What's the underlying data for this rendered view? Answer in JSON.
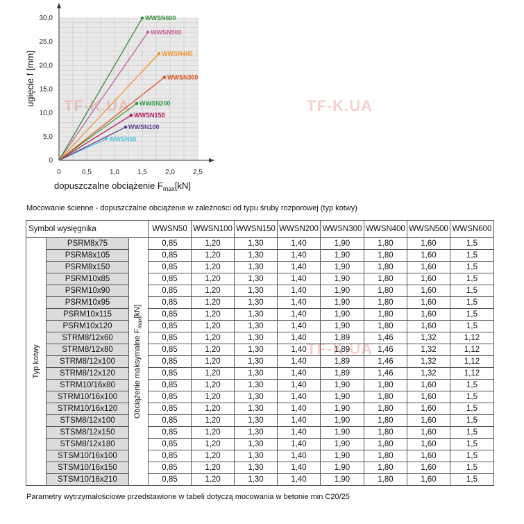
{
  "chart_data": {
    "type": "line",
    "xlabel": "dopuszczalne obciążenie F",
    "xlabel_sub": "max",
    "xlabel_unit": "[kN]",
    "ylabel": "ugięcie f [mm]",
    "xlim": [
      0,
      2.5
    ],
    "ylim": [
      0,
      30
    ],
    "x_ticks": [
      "0",
      "0,5",
      "1,0",
      "1,5",
      "2,0",
      "2,5"
    ],
    "y_ticks": [
      "0",
      "5,0",
      "10,0",
      "15,0",
      "20,0",
      "25,0",
      "30,0"
    ],
    "grid": true,
    "series": [
      {
        "name": "WWSN50",
        "color": "#4fc3d9",
        "x": [
          0,
          0.85
        ],
        "y": [
          0,
          4.5
        ]
      },
      {
        "name": "WWSN100",
        "color": "#5a3e8c",
        "x": [
          0,
          1.2
        ],
        "y": [
          0,
          7.0
        ]
      },
      {
        "name": "WWSN150",
        "color": "#b0185a",
        "x": [
          0,
          1.3
        ],
        "y": [
          0,
          9.5
        ]
      },
      {
        "name": "WWSN200",
        "color": "#2e9a3c",
        "x": [
          0,
          1.4
        ],
        "y": [
          0,
          12.0
        ]
      },
      {
        "name": "WWSN300",
        "color": "#d9531e",
        "x": [
          0,
          1.9
        ],
        "y": [
          0,
          17.5
        ]
      },
      {
        "name": "WWSN400",
        "color": "#f0922a",
        "x": [
          0,
          1.8
        ],
        "y": [
          0,
          22.5
        ]
      },
      {
        "name": "WWSN500",
        "color": "#c2609a",
        "x": [
          0,
          1.6
        ],
        "y": [
          0,
          27.0
        ]
      },
      {
        "name": "WWSN600",
        "color": "#3a8a3a",
        "x": [
          0,
          1.5
        ],
        "y": [
          0,
          30.0
        ]
      }
    ]
  },
  "watermarks": [
    "TF-K.UA",
    "TF-K.UA",
    "TF-K.UA",
    "TF-K.UA",
    "TF-K.UA"
  ],
  "caption": "Mocowanie ścienne - dopuszczalne obciążenie w zależności od typu śruby rozporowej (typ kotwy)",
  "table": {
    "symbol_header": "Symbol wysięgnika",
    "column_headers": [
      "WWSN50",
      "WWSN100",
      "WWSN150",
      "WWSN200",
      "WWSN300",
      "WWSN400",
      "WWSN500",
      "WWSN600"
    ],
    "left_label": "Typ kotwy",
    "mid_label": "Obciążenie maksymalne F",
    "mid_label_sub": "max",
    "mid_label_unit": "[kN]",
    "rows": [
      {
        "anchor": "PSRM8x75",
        "values": [
          "0,85",
          "1,20",
          "1,30",
          "1,40",
          "1,90",
          "1,80",
          "1,60",
          "1,5"
        ]
      },
      {
        "anchor": "PSRM8x105",
        "values": [
          "0,85",
          "1,20",
          "1,30",
          "1,40",
          "1,90",
          "1,80",
          "1,60",
          "1,5"
        ]
      },
      {
        "anchor": "PSRM8x150",
        "values": [
          "0,85",
          "1,20",
          "1,30",
          "1,40",
          "1,90",
          "1,80",
          "1,60",
          "1,5"
        ]
      },
      {
        "anchor": "PSRM10x85",
        "values": [
          "0,85",
          "1,20",
          "1,30",
          "1,40",
          "1,90",
          "1,80",
          "1,60",
          "1,5"
        ]
      },
      {
        "anchor": "PSRM10x90",
        "values": [
          "0,85",
          "1,20",
          "1,30",
          "1,40",
          "1,90",
          "1,80",
          "1,60",
          "1,5"
        ]
      },
      {
        "anchor": "PSRM10x95",
        "values": [
          "0,85",
          "1,20",
          "1,30",
          "1,40",
          "1,90",
          "1,80",
          "1,60",
          "1,5"
        ]
      },
      {
        "anchor": "PSRM10x115",
        "values": [
          "0,85",
          "1,20",
          "1,30",
          "1,40",
          "1,90",
          "1,80",
          "1,60",
          "1,5"
        ]
      },
      {
        "anchor": "PSRM10x120",
        "values": [
          "0,85",
          "1,20",
          "1,30",
          "1,40",
          "1,90",
          "1,80",
          "1,60",
          "1,5"
        ]
      },
      {
        "anchor": "STRM8/12x60",
        "values": [
          "0,85",
          "1,20",
          "1,30",
          "1,40",
          "1,89",
          "1,46",
          "1,32",
          "1,12"
        ]
      },
      {
        "anchor": "STRM8/12x80",
        "values": [
          "0,85",
          "1,20",
          "1,30",
          "1,40",
          "1,89",
          "1,46",
          "1,32",
          "1,12"
        ]
      },
      {
        "anchor": "STRM8/12x100",
        "values": [
          "0,85",
          "1,20",
          "1,30",
          "1,40",
          "1,89",
          "1,46",
          "1,32",
          "1,12"
        ]
      },
      {
        "anchor": "STRM8/12x120",
        "values": [
          "0,85",
          "1,20",
          "1,30",
          "1,40",
          "1,89",
          "1,46",
          "1,32",
          "1,12"
        ]
      },
      {
        "anchor": "STRM10/16x80",
        "values": [
          "0,85",
          "1,20",
          "1,30",
          "1,40",
          "1,90",
          "1,80",
          "1,60",
          "1,5"
        ]
      },
      {
        "anchor": "STRM10/16x100",
        "values": [
          "0,85",
          "1,20",
          "1,30",
          "1,40",
          "1,90",
          "1,80",
          "1,60",
          "1,5"
        ]
      },
      {
        "anchor": "STRM10/16x120",
        "values": [
          "0,85",
          "1,20",
          "1,30",
          "1,40",
          "1,90",
          "1,80",
          "1,60",
          "1,5"
        ]
      },
      {
        "anchor": "STSM8/12x100",
        "values": [
          "0,85",
          "1,20",
          "1,30",
          "1,40",
          "1,90",
          "1,80",
          "1,60",
          "1,5"
        ]
      },
      {
        "anchor": "STSM8/12x150",
        "values": [
          "0,85",
          "1,20",
          "1,30",
          "1,40",
          "1,90",
          "1,80",
          "1,60",
          "1,5"
        ]
      },
      {
        "anchor": "STSM8/12x180",
        "values": [
          "0,85",
          "1,20",
          "1,30",
          "1,40",
          "1,90",
          "1,80",
          "1,60",
          "1,5"
        ]
      },
      {
        "anchor": "STSM10/16x100",
        "values": [
          "0,85",
          "1,20",
          "1,30",
          "1,40",
          "1,90",
          "1,80",
          "1,60",
          "1,5"
        ]
      },
      {
        "anchor": "STSM10/16x150",
        "values": [
          "0,85",
          "1,20",
          "1,30",
          "1,40",
          "1,90",
          "1,80",
          "1,60",
          "1,5"
        ]
      },
      {
        "anchor": "STSM10/16x210",
        "values": [
          "0,85",
          "1,20",
          "1,30",
          "1,40",
          "1,90",
          "1,80",
          "1,60",
          "1,5"
        ]
      }
    ]
  },
  "footnote": "Parametry wytrzymałościowe przedstawione w tabeli dotyczą mocowania w betonie min C20/25"
}
